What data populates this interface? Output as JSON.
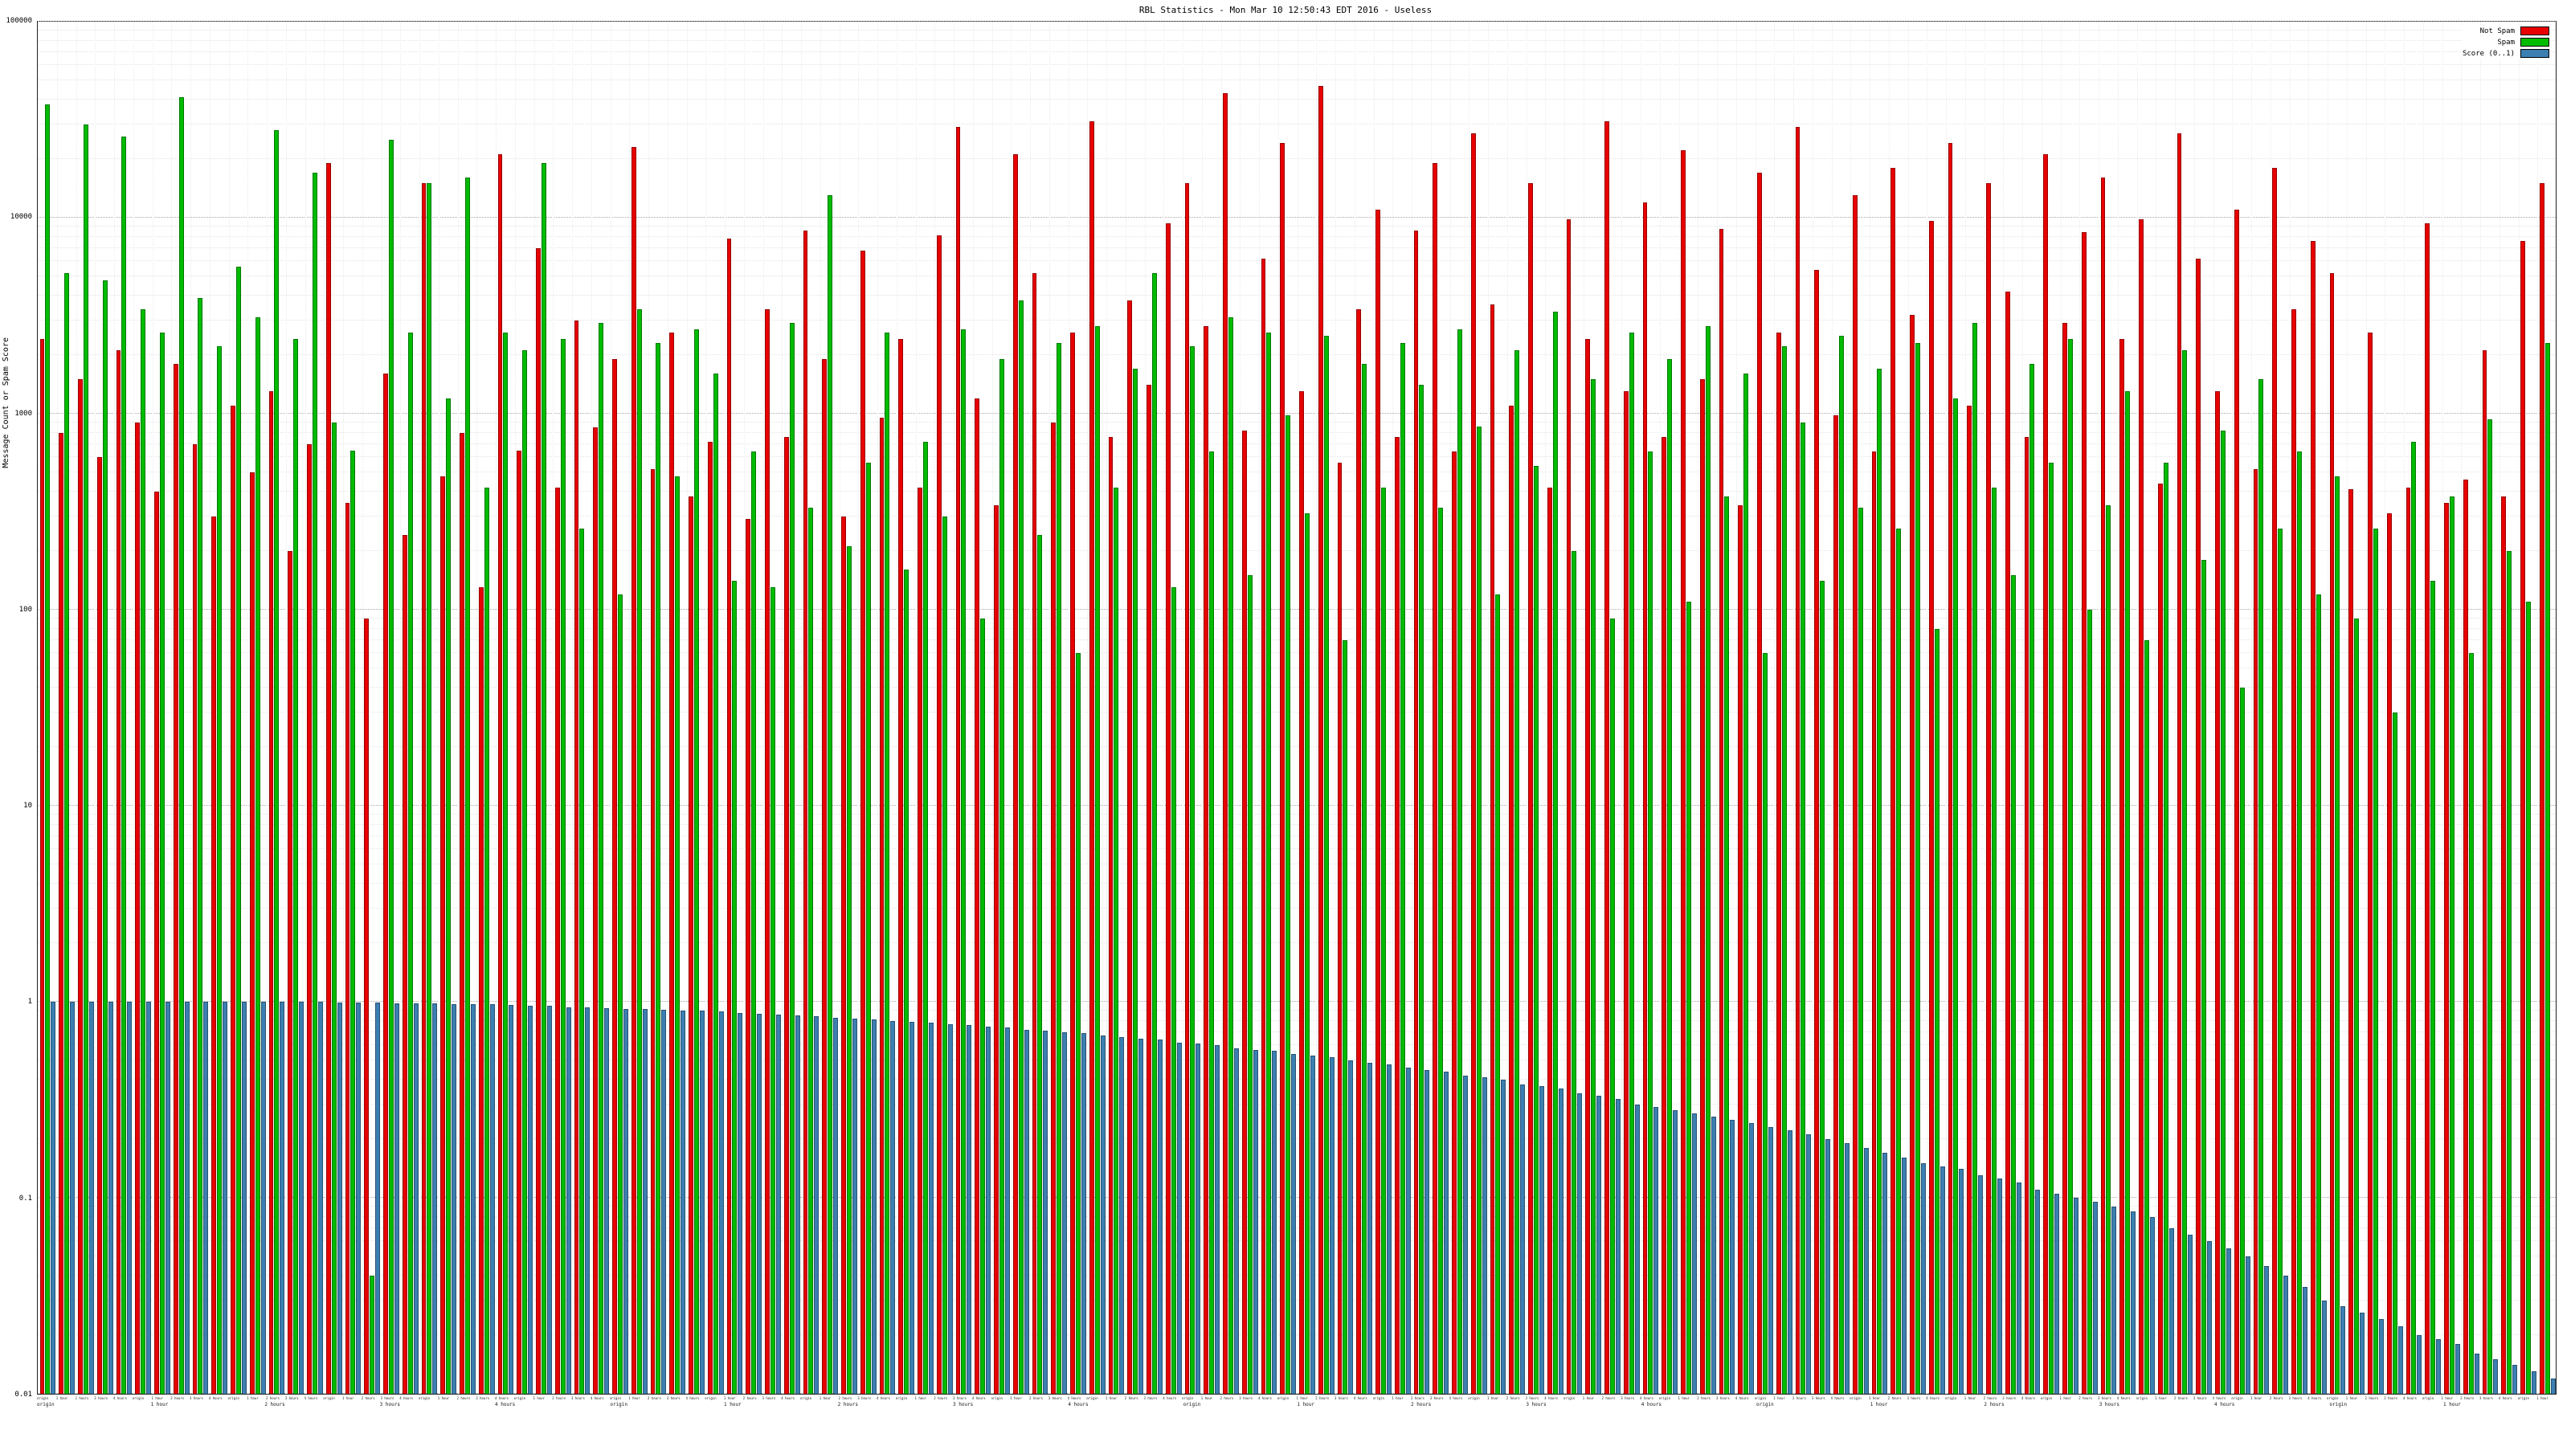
{
  "chart_data": {
    "type": "bar",
    "title": "RBL Statistics - Mon Mar 10 12:50:43 EDT 2016 - Useless",
    "ylabel": "Message Count or Spam Score",
    "yscale": "log",
    "ylim": [
      0.01,
      100000
    ],
    "grid": true,
    "legend_position": "top-right",
    "yticks": [
      {
        "label": "100000",
        "value": 100000
      },
      {
        "label": "10000",
        "value": 10000
      },
      {
        "label": "1000",
        "value": 1000
      },
      {
        "label": "100",
        "value": 100
      },
      {
        "label": "10",
        "value": 10
      },
      {
        "label": "1",
        "value": 1
      },
      {
        "label": "0.1",
        "value": 0.1
      },
      {
        "label": "0.01",
        "value": 0.01
      }
    ],
    "categories": [
      "origin",
      "1 hour",
      "2 hours",
      "3 hours",
      "4 hours",
      "origin",
      "1 hour",
      "2 hours",
      "3 hours",
      "4 hours",
      "origin",
      "1 hour",
      "2 hours",
      "3 hours",
      "4 hours",
      "origin",
      "1 hour",
      "2 hours",
      "3 hours",
      "4 hours",
      "origin",
      "1 hour",
      "2 hours",
      "3 hours",
      "4 hours",
      "origin",
      "1 hour",
      "2 hours",
      "3 hours",
      "4 hours",
      "origin",
      "1 hour",
      "2 hours",
      "3 hours",
      "4 hours",
      "origin",
      "1 hour",
      "2 hours",
      "3 hours",
      "4 hours",
      "origin",
      "1 hour",
      "2 hours",
      "3 hours",
      "4 hours",
      "origin",
      "1 hour",
      "2 hours",
      "3 hours",
      "4 hours",
      "origin",
      "1 hour",
      "2 hours",
      "3 hours",
      "4 hours",
      "origin",
      "1 hour",
      "2 hours",
      "3 hours",
      "4 hours",
      "origin",
      "1 hour",
      "2 hours",
      "3 hours",
      "4 hours",
      "origin",
      "1 hour",
      "2 hours",
      "3 hours",
      "4 hours",
      "origin",
      "1 hour",
      "2 hours",
      "3 hours",
      "4 hours",
      "origin",
      "1 hour",
      "2 hours",
      "3 hours",
      "4 hours",
      "origin",
      "1 hour",
      "2 hours",
      "3 hours",
      "4 hours",
      "origin",
      "1 hour",
      "2 hours",
      "3 hours",
      "4 hours",
      "origin",
      "1 hour",
      "2 hours",
      "3 hours",
      "4 hours",
      "origin",
      "1 hour",
      "2 hours",
      "3 hours",
      "4 hours",
      "origin",
      "1 hour",
      "2 hours",
      "3 hours",
      "4 hours",
      "origin",
      "1 hour",
      "2 hours",
      "3 hours",
      "4 hours",
      "origin",
      "1 hour",
      "2 hours",
      "3 hours",
      "4 hours",
      "origin",
      "1 hour",
      "2 hours",
      "3 hours",
      "4 hours",
      "origin",
      "1 hour",
      "2 hours",
      "3 hours",
      "4 hours",
      "origin",
      "1 hour",
      "2 hours",
      "3 hours",
      "4 hours",
      "origin",
      "1 hour"
    ],
    "series": [
      {
        "key": "notspam",
        "name": "Not Spam",
        "color": "#e80000",
        "values": [
          2400,
          800,
          1500,
          600,
          2100,
          900,
          400,
          1800,
          700,
          300,
          1100,
          500,
          1300,
          200,
          700,
          19000,
          350,
          90,
          1600,
          240,
          15000,
          480,
          800,
          130,
          21000,
          650,
          7000,
          420,
          3000,
          850,
          1900,
          23000,
          520,
          2600,
          380,
          720,
          7800,
          290,
          3400,
          760,
          8600,
          1900,
          300,
          6800,
          950,
          2400,
          420,
          8100,
          29000,
          1200,
          340,
          21000,
          5200,
          900,
          2600,
          31000,
          760,
          3800,
          1400,
          9400,
          15000,
          2800,
          43000,
          820,
          6200,
          24000,
          1300,
          47000,
          560,
          3400,
          11000,
          760,
          8600,
          19000,
          640,
          27000,
          3600,
          1100,
          15000,
          420,
          9800,
          2400,
          31000,
          1300,
          12000,
          760,
          22000,
          1500,
          8800,
          340,
          17000,
          2600,
          29000,
          5400,
          980,
          13000,
          640,
          18000,
          3200,
          9600,
          24000,
          1100,
          15000,
          4200,
          760,
          21000,
          2900,
          8400,
          16000,
          2400,
          9800,
          440,
          27000,
          6200,
          1300,
          11000,
          520,
          18000,
          3400,
          7600,
          5200,
          410,
          2600,
          310,
          420,
          9400,
          350,
          460,
          2100,
          380,
          7600,
          15000
        ]
      },
      {
        "key": "spam",
        "name": "Spam",
        "color": "#00bb00",
        "values": [
          38000,
          5200,
          30000,
          4800,
          26000,
          3400,
          2600,
          41000,
          3900,
          2200,
          5600,
          3100,
          28000,
          2400,
          17000,
          900,
          650,
          0.04,
          25000,
          2600,
          15000,
          1200,
          16000,
          420,
          2600,
          2100,
          19000,
          2400,
          260,
          2900,
          120,
          3400,
          2300,
          480,
          2700,
          1600,
          140,
          640,
          130,
          2900,
          330,
          13000,
          210,
          560,
          2600,
          160,
          720,
          300,
          2700,
          90,
          1900,
          3800,
          240,
          2300,
          60,
          2800,
          420,
          1700,
          5200,
          130,
          2200,
          640,
          3100,
          150,
          2600,
          980,
          310,
          2500,
          70,
          1800,
          420,
          2300,
          1400,
          330,
          2700,
          860,
          120,
          2100,
          540,
          3300,
          200,
          1500,
          90,
          2600,
          640,
          1900,
          110,
          2800,
          380,
          1600,
          60,
          2200,
          900,
          140,
          2500,
          330,
          1700,
          260,
          2300,
          80,
          1200,
          2900,
          420,
          150,
          1800,
          560,
          2400,
          100,
          340,
          1300,
          70,
          560,
          2100,
          180,
          820,
          40,
          1500,
          260,
          640,
          120,
          480,
          90,
          260,
          30,
          720,
          140,
          380,
          60,
          940,
          200,
          110,
          2300
        ]
      },
      {
        "key": "score",
        "name": "Score (0..1)",
        "color": "#3c7fb1",
        "values": [
          1.0,
          1.0,
          1.0,
          1.0,
          1.0,
          1.0,
          1.0,
          1.0,
          1.0,
          1.0,
          1.0,
          1.0,
          1.0,
          1.0,
          1.0,
          0.99,
          0.99,
          0.99,
          0.98,
          0.98,
          0.98,
          0.97,
          0.97,
          0.97,
          0.96,
          0.95,
          0.95,
          0.94,
          0.94,
          0.93,
          0.92,
          0.92,
          0.91,
          0.9,
          0.9,
          0.89,
          0.88,
          0.87,
          0.86,
          0.85,
          0.84,
          0.83,
          0.82,
          0.81,
          0.8,
          0.79,
          0.78,
          0.77,
          0.76,
          0.75,
          0.74,
          0.72,
          0.71,
          0.7,
          0.69,
          0.67,
          0.66,
          0.65,
          0.64,
          0.62,
          0.61,
          0.6,
          0.58,
          0.57,
          0.56,
          0.54,
          0.53,
          0.52,
          0.5,
          0.49,
          0.48,
          0.46,
          0.45,
          0.44,
          0.42,
          0.41,
          0.4,
          0.38,
          0.37,
          0.36,
          0.34,
          0.33,
          0.32,
          0.3,
          0.29,
          0.28,
          0.27,
          0.26,
          0.25,
          0.24,
          0.23,
          0.22,
          0.21,
          0.2,
          0.19,
          0.18,
          0.17,
          0.16,
          0.15,
          0.145,
          0.14,
          0.13,
          0.125,
          0.12,
          0.11,
          0.105,
          0.1,
          0.095,
          0.09,
          0.085,
          0.08,
          0.07,
          0.065,
          0.06,
          0.055,
          0.05,
          0.045,
          0.04,
          0.035,
          0.03,
          0.028,
          0.026,
          0.024,
          0.022,
          0.02,
          0.019,
          0.018,
          0.016,
          0.015,
          0.014,
          0.013,
          0.012
        ]
      }
    ]
  }
}
